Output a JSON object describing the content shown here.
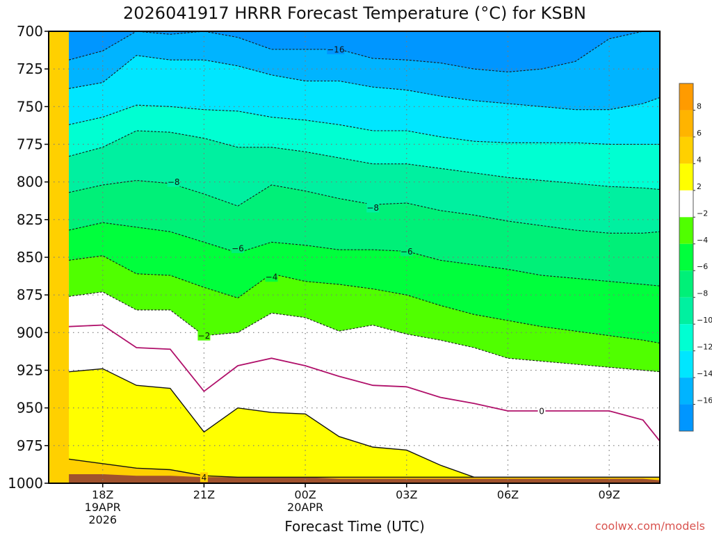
{
  "chart_data": {
    "type": "heatmap",
    "title": "2026041917 HRRR Forecast Temperature (°C) for KSBN",
    "xlabel": "Forecast Time (UTC)",
    "ylabel": "",
    "credit": "coolwx.com/models",
    "x_range_hours": [
      -1.6,
      16.5
    ],
    "y_levels_mb": [
      700,
      725,
      750,
      775,
      800,
      825,
      850,
      875,
      900,
      925,
      950,
      975,
      1000
    ],
    "ylim_mb": [
      700,
      1000
    ],
    "grid": true,
    "x_ticks": [
      {
        "h": 0,
        "lines": [
          "18Z",
          "19APR",
          "2026"
        ]
      },
      {
        "h": 3,
        "lines": [
          "21Z"
        ]
      },
      {
        "h": 6,
        "lines": [
          "00Z",
          "20APR"
        ]
      },
      {
        "h": 9,
        "lines": [
          "03Z"
        ]
      },
      {
        "h": 12,
        "lines": [
          "06Z"
        ]
      },
      {
        "h": 15,
        "lines": [
          "09Z"
        ]
      }
    ],
    "times_h": [
      -1.0,
      0.0,
      1.0,
      2.0,
      3.0,
      4.0,
      5.0,
      6.0,
      7.0,
      8.0,
      9.0,
      10.0,
      11.0,
      12.0,
      13.0,
      14.0,
      15.0,
      16.0,
      16.5
    ],
    "isotherms": [
      {
        "t": 4,
        "p": [
          984,
          987,
          990,
          991,
          995,
          996,
          996,
          996,
          996,
          996,
          996,
          996,
          996,
          996,
          996,
          996,
          996,
          996,
          996
        ]
      },
      {
        "t": 2,
        "p": [
          926,
          924,
          935,
          937,
          966,
          950,
          953,
          954,
          969,
          976,
          978,
          988,
          996,
          996,
          996,
          996,
          996,
          996,
          996
        ]
      },
      {
        "t": 0,
        "p": [
          896,
          895,
          910,
          911,
          939,
          922,
          917,
          922,
          929,
          935,
          936,
          943,
          947,
          952,
          952,
          952,
          952,
          958,
          972
        ]
      },
      {
        "t": -2,
        "p": [
          876,
          873,
          885,
          885,
          902,
          900,
          887,
          890,
          899,
          895,
          901,
          905,
          910,
          917,
          919,
          921,
          923,
          925,
          926
        ]
      },
      {
        "t": -4,
        "p": [
          852,
          849,
          861,
          862,
          870,
          877,
          861,
          866,
          868,
          871,
          875,
          882,
          888,
          892,
          896,
          899,
          902,
          905,
          907
        ]
      },
      {
        "t": -6,
        "p": [
          832,
          827,
          830,
          833,
          840,
          847,
          840,
          842,
          845,
          845,
          846,
          852,
          855,
          858,
          862,
          864,
          866,
          868,
          869
        ]
      },
      {
        "t": -8,
        "p": [
          807,
          802,
          799,
          801,
          808,
          816,
          802,
          806,
          811,
          815,
          814,
          819,
          822,
          826,
          829,
          832,
          834,
          834,
          833
        ]
      },
      {
        "t": -10,
        "p": [
          783,
          777,
          766,
          767,
          771,
          777,
          777,
          780,
          784,
          788,
          788,
          791,
          794,
          797,
          799,
          801,
          803,
          804,
          805
        ]
      },
      {
        "t": -12,
        "p": [
          762,
          757,
          749,
          750,
          752,
          753,
          757,
          759,
          762,
          766,
          766,
          770,
          773,
          774,
          774,
          774,
          775,
          775,
          775
        ]
      },
      {
        "t": -14,
        "p": [
          738,
          734,
          716,
          719,
          719,
          723,
          729,
          733,
          733,
          737,
          739,
          743,
          746,
          748,
          750,
          752,
          752,
          748,
          744
        ]
      },
      {
        "t": -16,
        "p": [
          719,
          713,
          700,
          702,
          700,
          704,
          712,
          712,
          712,
          718,
          719,
          721,
          725,
          727,
          725,
          720,
          705,
          700,
          700
        ]
      }
    ],
    "contour_labels": [
      {
        "text": "-16",
        "h": 6.9,
        "p": 712
      },
      {
        "text": "-8",
        "h": 2.1,
        "p": 800
      },
      {
        "text": "-8",
        "h": 8.0,
        "p": 817
      },
      {
        "text": "-6",
        "h": 4.0,
        "p": 844
      },
      {
        "text": "-6",
        "h": 9.0,
        "p": 846
      },
      {
        "text": "-4",
        "h": 5.0,
        "p": 863
      },
      {
        "text": "-2",
        "h": 3.0,
        "p": 902
      },
      {
        "text": "4",
        "h": 3.0,
        "p": 996
      },
      {
        "text": "0",
        "h": 13.0,
        "p": 952
      }
    ],
    "ground_top_p": [
      994,
      994,
      995,
      995,
      996,
      996,
      996,
      996,
      997,
      997,
      997,
      997,
      997,
      997,
      997,
      997,
      997,
      997,
      998
    ],
    "colorbar": {
      "ticks": [
        "8",
        "6",
        "4",
        "2",
        "-2",
        "-4",
        "-6",
        "-8",
        "-10",
        "-12",
        "-14",
        "-16"
      ],
      "bins": [
        {
          "lo": 8,
          "hi": 10,
          "color": "#ff9b00"
        },
        {
          "lo": 6,
          "hi": 8,
          "color": "#ffb400"
        },
        {
          "lo": 4,
          "hi": 6,
          "color": "#ffd000"
        },
        {
          "lo": 2,
          "hi": 4,
          "color": "#ffff00"
        },
        {
          "lo": -2,
          "hi": 2,
          "color": "#ffffff"
        },
        {
          "lo": -4,
          "hi": -2,
          "color": "#50ff00"
        },
        {
          "lo": -6,
          "hi": -4,
          "color": "#00ff3c"
        },
        {
          "lo": -8,
          "hi": -6,
          "color": "#00f078"
        },
        {
          "lo": -10,
          "hi": -8,
          "color": "#00f0a0"
        },
        {
          "lo": -12,
          "hi": -10,
          "color": "#00ffd2"
        },
        {
          "lo": -14,
          "hi": -12,
          "color": "#00e6ff"
        },
        {
          "lo": -16,
          "hi": -14,
          "color": "#00b4ff"
        },
        {
          "lo": -18,
          "hi": -16,
          "color": "#0096ff"
        }
      ]
    },
    "colors": {
      "ground": "#a0522d",
      "zero_line": "#b0106a",
      "grid": "#7a7a7a",
      "neg_line": "#1a1a1a"
    }
  }
}
